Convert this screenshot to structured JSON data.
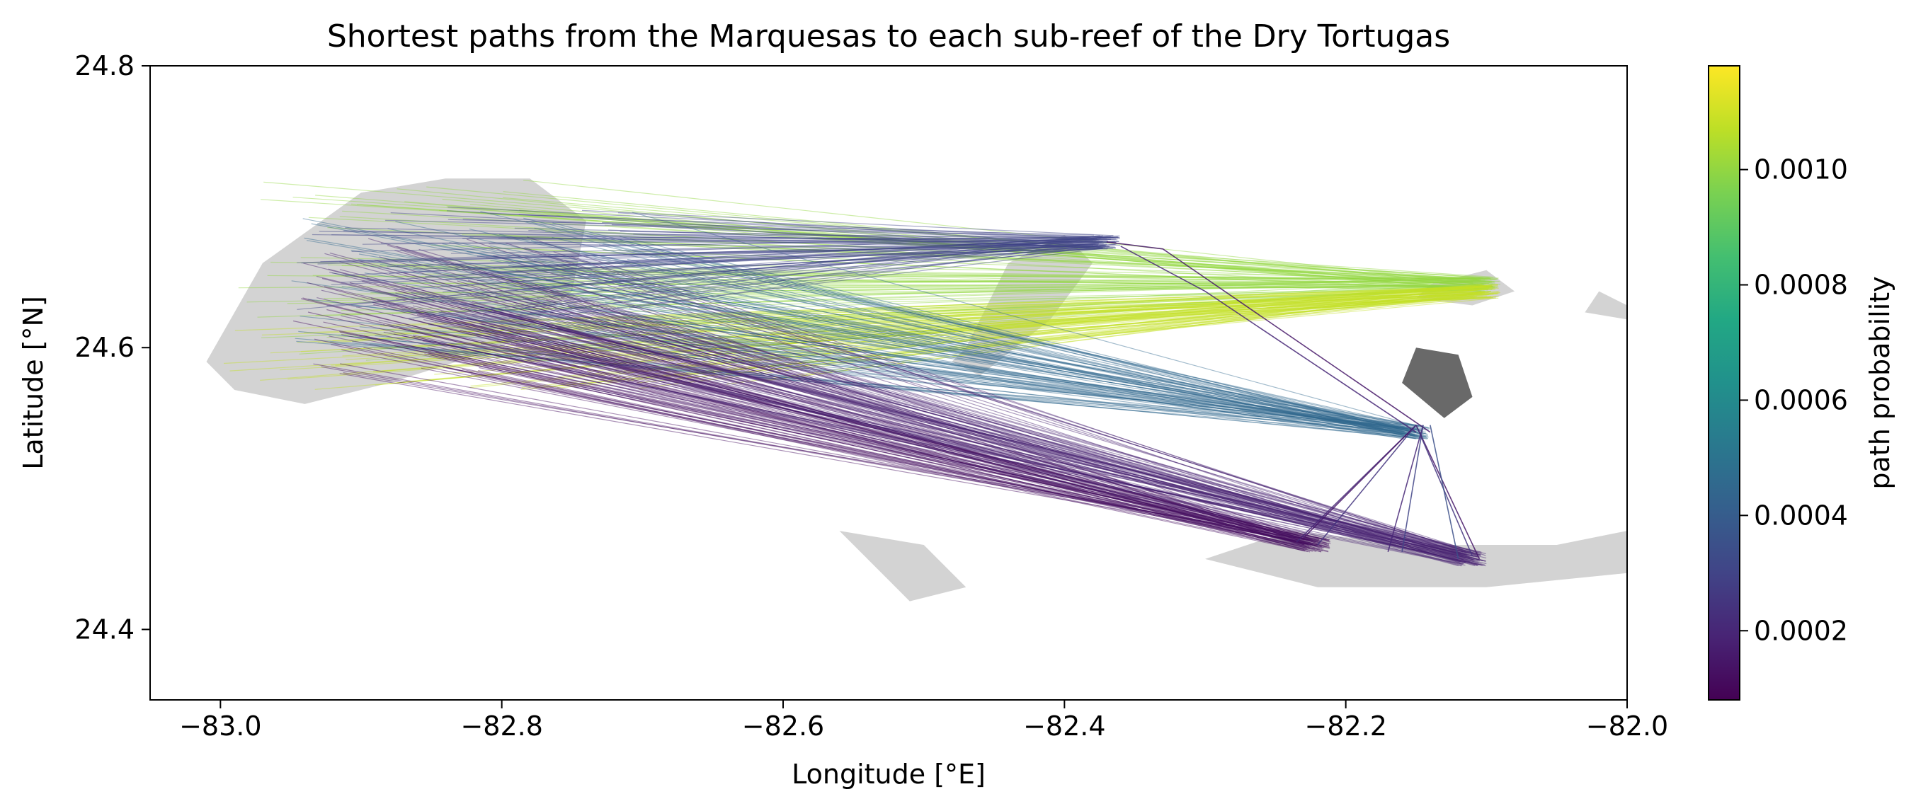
{
  "chart_data": {
    "type": "map",
    "title": "Shortest paths from the Marquesas to each sub-reef of the Dry Tortugas",
    "xlabel": "Longitude [°E]",
    "ylabel": "Latitude [°N]",
    "xlim": [
      -83.05,
      -82.0
    ],
    "ylim": [
      24.35,
      24.8
    ],
    "xticks": [
      -83.0,
      -82.8,
      -82.6,
      -82.4,
      -82.2,
      -82.0
    ],
    "xtick_labels": [
      "−83.0",
      "−82.8",
      "−82.6",
      "−82.4",
      "−82.2",
      "−82.0"
    ],
    "yticks": [
      24.4,
      24.6,
      24.8
    ],
    "ytick_labels": [
      "24.4",
      "24.6",
      "24.8"
    ],
    "colorbar": {
      "label": "path probability",
      "colormap": "viridis",
      "range": [
        8e-05,
        0.00118
      ],
      "ticks": [
        0.0002,
        0.0004,
        0.0006,
        0.0008,
        0.001
      ],
      "tick_labels": [
        "0.0002",
        "0.0004",
        "0.0006",
        "0.0008",
        "0.0010"
      ]
    },
    "land_color": "#d3d3d3",
    "highlight_land_color": "#696969",
    "path_groups": [
      {
        "source_lon": [
          -83.0,
          -82.7
        ],
        "source_lat": [
          24.59,
          24.72
        ],
        "target_lon": -82.1,
        "target_lat": 24.645,
        "probability": 0.001
      },
      {
        "source_lon": [
          -83.0,
          -82.6
        ],
        "source_lat": [
          24.57,
          24.62
        ],
        "target_lon": -82.1,
        "target_lat": 24.64,
        "probability": 0.00108
      },
      {
        "source_lon": [
          -82.95,
          -82.7
        ],
        "source_lat": [
          24.6,
          24.7
        ],
        "target_lon": -82.15,
        "target_lat": 24.54,
        "probability": 0.00045
      },
      {
        "source_lon": [
          -82.95,
          -82.75
        ],
        "source_lat": [
          24.58,
          24.65
        ],
        "target_lon": -82.22,
        "target_lat": 24.46,
        "probability": 0.00012
      },
      {
        "source_lon": [
          -82.95,
          -82.75
        ],
        "source_lat": [
          24.6,
          24.68
        ],
        "target_lon": -82.11,
        "target_lat": 24.45,
        "probability": 0.00018
      },
      {
        "source_lon": [
          -82.95,
          -82.7
        ],
        "source_lat": [
          24.62,
          24.7
        ],
        "target_lon": -82.37,
        "target_lat": 24.675,
        "probability": 0.0003
      }
    ],
    "relay_paths": [
      {
        "lon": [
          -82.37,
          -82.33,
          -82.14
        ],
        "lat": [
          24.675,
          24.67,
          24.54
        ],
        "probability": 0.00015
      },
      {
        "lon": [
          -82.36,
          -82.3,
          -82.15
        ],
        "lat": [
          24.672,
          24.64,
          24.54
        ],
        "probability": 0.0002
      },
      {
        "lon": [
          -82.15,
          -82.235
        ],
        "lat": [
          24.545,
          24.462
        ],
        "probability": 0.0002
      },
      {
        "lon": [
          -82.15,
          -82.23
        ],
        "lat": [
          24.545,
          24.465
        ],
        "probability": 0.00015
      },
      {
        "lon": [
          -82.15,
          -82.22
        ],
        "lat": [
          24.545,
          24.46
        ],
        "probability": 0.00025
      },
      {
        "lon": [
          -82.145,
          -82.17
        ],
        "lat": [
          24.545,
          24.455
        ],
        "probability": 0.0002
      },
      {
        "lon": [
          -82.145,
          -82.16
        ],
        "lat": [
          24.545,
          24.455
        ],
        "probability": 0.0003
      },
      {
        "lon": [
          -82.15,
          -82.105
        ],
        "lat": [
          24.545,
          24.45
        ],
        "probability": 0.00015
      },
      {
        "lon": [
          -82.15,
          -82.11
        ],
        "lat": [
          24.545,
          24.452
        ],
        "probability": 0.00025
      },
      {
        "lon": [
          -82.14,
          -82.12
        ],
        "lat": [
          24.545,
          24.45
        ],
        "probability": 0.00035
      }
    ],
    "land_polygons": [
      {
        "name": "marquesas",
        "lon": [
          -83.01,
          -82.97,
          -82.9,
          -82.84,
          -82.78,
          -82.74,
          -82.75,
          -82.8,
          -82.88,
          -82.94,
          -82.99,
          -83.01
        ],
        "lat": [
          24.59,
          24.66,
          24.71,
          24.72,
          24.72,
          24.69,
          24.64,
          24.6,
          24.575,
          24.56,
          24.57,
          24.59
        ]
      },
      {
        "name": "mid-bank",
        "lon": [
          -82.47,
          -82.44,
          -82.4,
          -82.38,
          -82.41,
          -82.46,
          -82.48,
          -82.47
        ],
        "lat": [
          24.6,
          24.66,
          24.68,
          24.66,
          24.62,
          24.58,
          24.59,
          24.6
        ]
      },
      {
        "name": "east-reef",
        "lon": [
          -82.14,
          -82.1,
          -82.08,
          -82.11,
          -82.15,
          -82.14
        ],
        "lat": [
          24.645,
          24.655,
          24.64,
          24.63,
          24.635,
          24.645
        ]
      },
      {
        "name": "south-bank",
        "lon": [
          -82.24,
          -82.15,
          -82.05,
          -82.0,
          -82.0,
          -82.1,
          -82.22,
          -82.3,
          -82.24
        ],
        "lat": [
          24.47,
          24.46,
          24.46,
          24.47,
          24.44,
          24.43,
          24.43,
          24.45,
          24.47
        ]
      },
      {
        "name": "south-west-bank",
        "lon": [
          -82.56,
          -82.5,
          -82.47,
          -82.51,
          -82.56
        ],
        "lat": [
          24.47,
          24.46,
          24.43,
          24.42,
          24.47
        ]
      },
      {
        "name": "east-shore",
        "lon": [
          -82.02,
          -82.0,
          -82.0,
          -82.03,
          -82.02
        ],
        "lat": [
          24.64,
          24.63,
          24.62,
          24.625,
          24.64
        ]
      }
    ],
    "highlight_land": [
      {
        "name": "atoll",
        "lon": [
          -82.15,
          -82.12,
          -82.11,
          -82.13,
          -82.16,
          -82.15
        ],
        "lat": [
          24.6,
          24.595,
          24.565,
          24.55,
          24.575,
          24.6
        ]
      }
    ]
  }
}
